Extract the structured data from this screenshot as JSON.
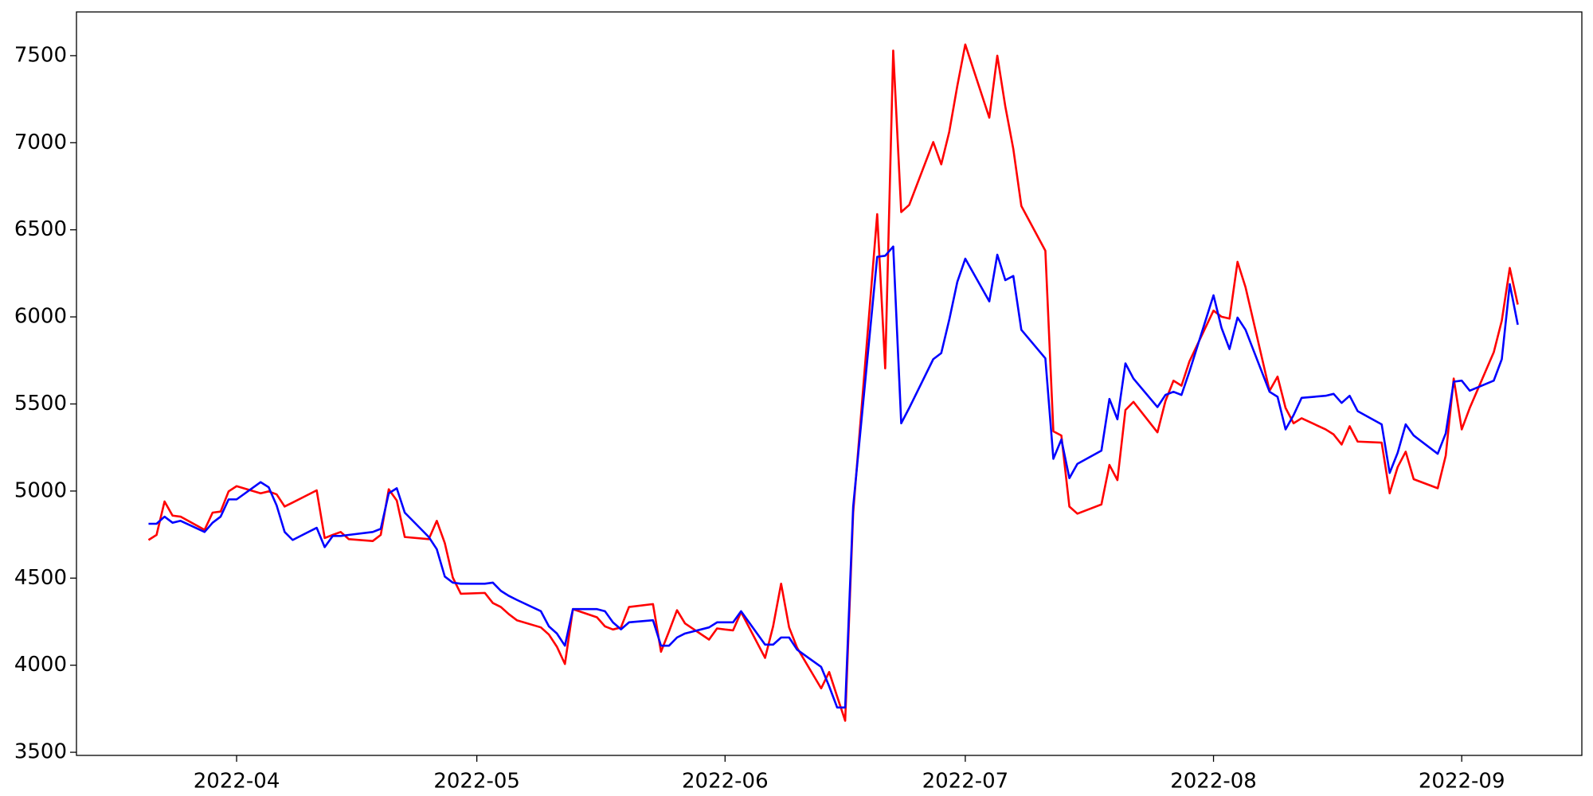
{
  "chart_data": {
    "type": "line",
    "x": [
      "2022-03-21",
      "2022-03-22",
      "2022-03-23",
      "2022-03-24",
      "2022-03-25",
      "2022-03-28",
      "2022-03-29",
      "2022-03-30",
      "2022-03-31",
      "2022-04-01",
      "2022-04-04",
      "2022-04-05",
      "2022-04-06",
      "2022-04-07",
      "2022-04-08",
      "2022-04-11",
      "2022-04-12",
      "2022-04-13",
      "2022-04-14",
      "2022-04-15",
      "2022-04-18",
      "2022-04-19",
      "2022-04-20",
      "2022-04-21",
      "2022-04-22",
      "2022-04-25",
      "2022-04-26",
      "2022-04-27",
      "2022-04-28",
      "2022-04-29",
      "2022-05-02",
      "2022-05-03",
      "2022-05-04",
      "2022-05-05",
      "2022-05-06",
      "2022-05-09",
      "2022-05-10",
      "2022-05-11",
      "2022-05-12",
      "2022-05-13",
      "2022-05-16",
      "2022-05-17",
      "2022-05-18",
      "2022-05-19",
      "2022-05-20",
      "2022-05-23",
      "2022-05-24",
      "2022-05-25",
      "2022-05-26",
      "2022-05-27",
      "2022-05-30",
      "2022-05-31",
      "2022-06-01",
      "2022-06-02",
      "2022-06-03",
      "2022-06-06",
      "2022-06-07",
      "2022-06-08",
      "2022-06-09",
      "2022-06-10",
      "2022-06-13",
      "2022-06-14",
      "2022-06-15",
      "2022-06-16",
      "2022-06-17",
      "2022-06-20",
      "2022-06-21",
      "2022-06-22",
      "2022-06-23",
      "2022-06-24",
      "2022-06-27",
      "2022-06-28",
      "2022-06-29",
      "2022-06-30",
      "2022-07-01",
      "2022-07-04",
      "2022-07-05",
      "2022-07-06",
      "2022-07-07",
      "2022-07-08",
      "2022-07-11",
      "2022-07-12",
      "2022-07-13",
      "2022-07-14",
      "2022-07-15",
      "2022-07-18",
      "2022-07-19",
      "2022-07-20",
      "2022-07-21",
      "2022-07-22",
      "2022-07-25",
      "2022-07-26",
      "2022-07-27",
      "2022-07-28",
      "2022-07-29",
      "2022-08-01",
      "2022-08-02",
      "2022-08-03",
      "2022-08-04",
      "2022-08-05",
      "2022-08-08",
      "2022-08-09",
      "2022-08-10",
      "2022-08-11",
      "2022-08-12",
      "2022-08-15",
      "2022-08-16",
      "2022-08-17",
      "2022-08-18",
      "2022-08-19",
      "2022-08-22",
      "2022-08-23",
      "2022-08-24",
      "2022-08-25",
      "2022-08-26",
      "2022-08-29",
      "2022-08-30",
      "2022-08-31",
      "2022-09-01",
      "2022-09-02",
      "2022-09-05",
      "2022-09-06",
      "2022-09-07",
      "2022-09-08"
    ],
    "series": [
      {
        "color": "#ff0000",
        "values": [
          4719,
          4748,
          4940,
          4859,
          4853,
          4777,
          4876,
          4882,
          4998,
          5028,
          4987,
          4998,
          4981,
          4911,
          4934,
          5004,
          4730,
          4748,
          4765,
          4724,
          4713,
          4748,
          5010,
          4946,
          4736,
          4724,
          4829,
          4701,
          4503,
          4410,
          4415,
          4357,
          4334,
          4293,
          4258,
          4217,
          4176,
          4106,
          4007,
          4322,
          4275,
          4223,
          4205,
          4217,
          4334,
          4351,
          4077,
          4194,
          4316,
          4240,
          4147,
          4211,
          4205,
          4200,
          4305,
          4042,
          4223,
          4468,
          4217,
          4100,
          3867,
          3961,
          3820,
          3681,
          4876,
          6590,
          5704,
          7529,
          6602,
          6643,
          7004,
          6876,
          7063,
          7325,
          7564,
          7144,
          7500,
          7208,
          6964,
          6637,
          6380,
          5343,
          5319,
          4911,
          4870,
          4923,
          5150,
          5063,
          5465,
          5512,
          5337,
          5517,
          5634,
          5605,
          5745,
          6036,
          6001,
          5990,
          6316,
          6170,
          5576,
          5657,
          5477,
          5389,
          5418,
          5354,
          5325,
          5267,
          5372,
          5284,
          5278,
          4987,
          5138,
          5226,
          5068,
          5016,
          5203,
          5646,
          5354,
          5477,
          5797,
          5978,
          6281,
          6071
        ]
      },
      {
        "color": "#0000ff",
        "values": [
          4812,
          4812,
          4853,
          4818,
          4829,
          4765,
          4818,
          4853,
          4952,
          4952,
          5051,
          5022,
          4917,
          4765,
          4719,
          4789,
          4678,
          4742,
          4742,
          4748,
          4765,
          4783,
          4987,
          5016,
          4876,
          4736,
          4666,
          4509,
          4474,
          4468,
          4468,
          4474,
          4427,
          4398,
          4375,
          4310,
          4223,
          4182,
          4112,
          4322,
          4322,
          4310,
          4246,
          4206,
          4246,
          4258,
          4112,
          4112,
          4159,
          4182,
          4217,
          4246,
          4246,
          4246,
          4310,
          4118,
          4118,
          4159,
          4159,
          4089,
          3990,
          3879,
          3757,
          3757,
          4911,
          6345,
          6351,
          6404,
          5389,
          5477,
          5757,
          5792,
          5984,
          6200,
          6334,
          6089,
          6357,
          6211,
          6235,
          5926,
          5762,
          5185,
          5296,
          5074,
          5156,
          5232,
          5529,
          5412,
          5733,
          5646,
          5482,
          5552,
          5570,
          5552,
          5687,
          6124,
          5937,
          5815,
          5996,
          5926,
          5570,
          5541,
          5354,
          5436,
          5535,
          5547,
          5558,
          5506,
          5547,
          5459,
          5383,
          5104,
          5220,
          5383,
          5319,
          5214,
          5331,
          5628,
          5634,
          5576,
          5634,
          5757,
          6188,
          5955
        ]
      }
    ],
    "xlim": [
      "2022-03-12",
      "2022-09-16"
    ],
    "xticks": [
      {
        "value": "2022-04-01",
        "label": "2022-04"
      },
      {
        "value": "2022-05-01",
        "label": "2022-05"
      },
      {
        "value": "2022-06-01",
        "label": "2022-06"
      },
      {
        "value": "2022-07-01",
        "label": "2022-07"
      },
      {
        "value": "2022-08-01",
        "label": "2022-08"
      },
      {
        "value": "2022-09-01",
        "label": "2022-09"
      }
    ],
    "ylim": [
      3482,
      7751
    ],
    "yticks": [
      3500,
      4000,
      4500,
      5000,
      5500,
      6000,
      6500,
      7000,
      7500
    ],
    "grid": false
  }
}
